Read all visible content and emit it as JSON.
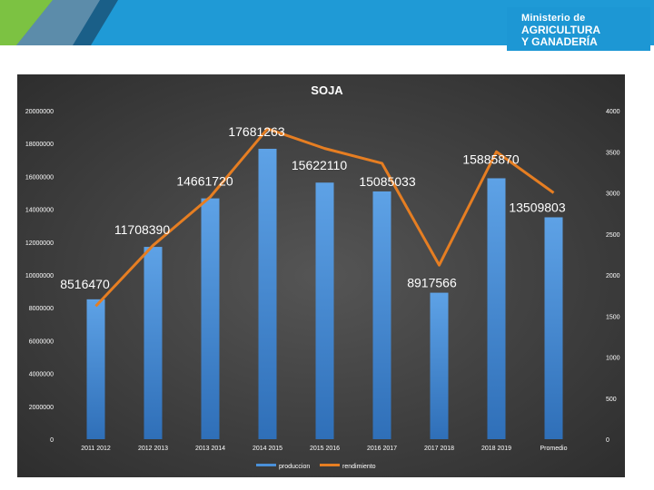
{
  "chart_data": {
    "type": "bar",
    "title": "SOJA",
    "categories": [
      "2011 2012",
      "2012 2013",
      "2013 2014",
      "2014 2015",
      "2015 2016",
      "2016 2017",
      "2017 2018",
      "2018 2019",
      "Promedio"
    ],
    "series": [
      {
        "name": "produccion",
        "type": "bar",
        "axis": "left",
        "color": "#4a90d9",
        "values": [
          8516470,
          11708390,
          14661720,
          17681263,
          15622110,
          15085033,
          8917566,
          15885870,
          13509803
        ]
      },
      {
        "name": "rendimiento",
        "type": "line",
        "axis": "right",
        "color": "#e67e22",
        "values": [
          1620,
          2360,
          2950,
          3780,
          3540,
          3360,
          2120,
          3500,
          3000
        ]
      }
    ],
    "data_labels": [
      "8516470",
      "11708390",
      "14661720",
      "17681263",
      "15622110",
      "15085033",
      "8917566",
      "15885870",
      "13509803"
    ],
    "left_axis": {
      "min": 0,
      "max": 20000000,
      "ticks": [
        "0",
        "2000000",
        "4000000",
        "6000000",
        "8000000",
        "10000000",
        "12000000",
        "14000000",
        "16000000",
        "18000000",
        "20000000"
      ]
    },
    "right_axis": {
      "min": 0,
      "max": 4000,
      "ticks": [
        "0",
        "500",
        "1000",
        "1500",
        "2000",
        "2500",
        "3000",
        "3500",
        "4000"
      ]
    },
    "legend": {
      "position": "bottom",
      "items": [
        "produccion",
        "rendimiento"
      ]
    },
    "grid": false,
    "background": "#3c3c3c"
  },
  "header": {
    "ministry_line1": "Ministerio de",
    "ministry_line2": "AGRICULTURA",
    "ministry_line3": "Y GANADERÍA",
    "band_color": "#1f9ad6",
    "accent_green": "#7cc242"
  }
}
